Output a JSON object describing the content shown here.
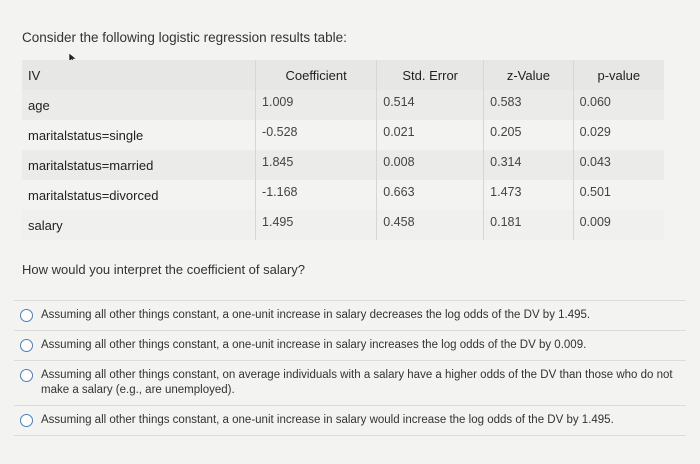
{
  "prompt": "Consider the following logistic regression results table:",
  "table": {
    "headers": [
      "IV",
      "Coefficient",
      "Std. Error",
      "z-Value",
      "p-value"
    ],
    "rows": [
      [
        "age",
        "1.009",
        "0.514",
        "0.583",
        "0.060"
      ],
      [
        "maritalstatus=single",
        "-0.528",
        "0.021",
        "0.205",
        "0.029"
      ],
      [
        "maritalstatus=married",
        "1.845",
        "0.008",
        "0.314",
        "0.043"
      ],
      [
        "maritalstatus=divorced",
        "-1.168",
        "0.663",
        "1.473",
        "0.501"
      ],
      [
        "salary",
        "1.495",
        "0.458",
        "0.181",
        "0.009"
      ]
    ]
  },
  "question": "How would you interpret the coefficient of salary?",
  "options": [
    "Assuming all other things constant, a one-unit increase in salary decreases the log odds of the DV by 1.495.",
    "Assuming all other things constant, a one-unit increase in salary increases the log odds of the DV by 0.009.",
    "Assuming all other things constant, on average individuals with a salary have a higher odds of the DV than those who do not make a salary (e.g., are unemployed).",
    "Assuming all other things constant, a one-unit increase in salary would increase the log odds of the DV by 1.495."
  ],
  "colors": {
    "radio": "#4a7fb5",
    "row_shade": "#ebebe9",
    "background": "#f3f3f1"
  }
}
